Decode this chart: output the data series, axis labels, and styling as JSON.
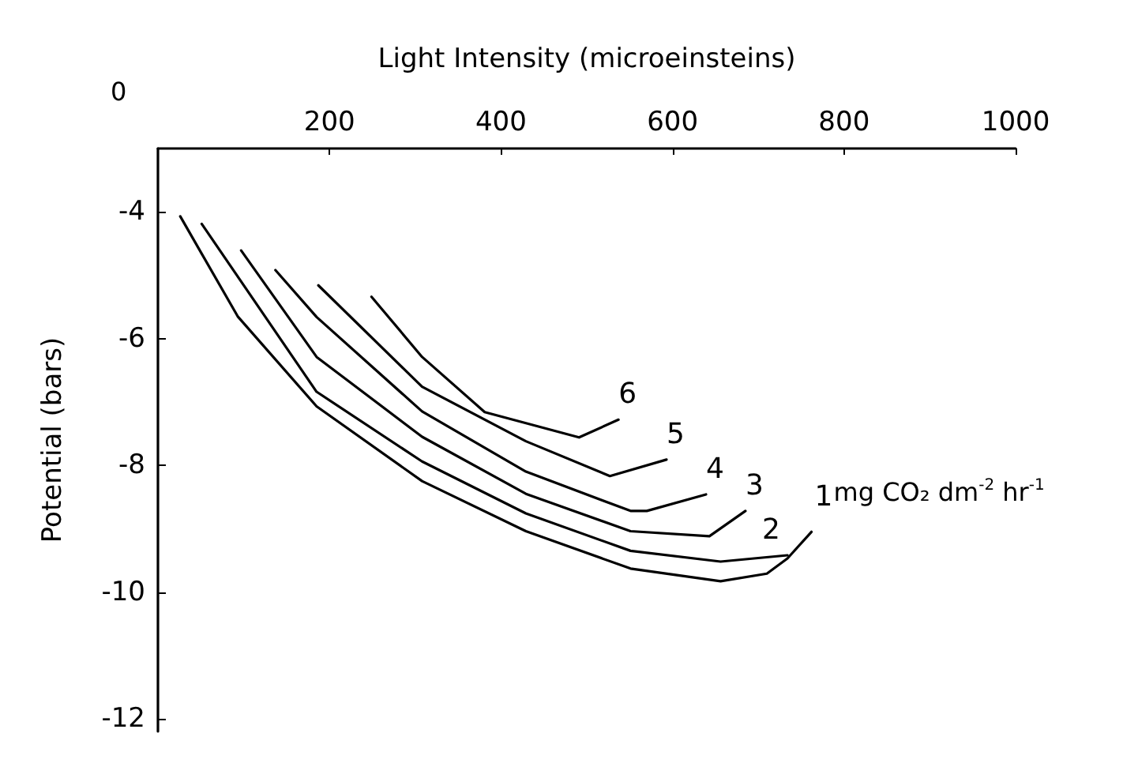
{
  "chart_data": {
    "type": "line",
    "xlabel": "Light Intensity (microeinsteins)",
    "ylabel": "Potential (bars)",
    "xlim": [
      0,
      1000
    ],
    "xticks": [
      200,
      400,
      600,
      800,
      1000
    ],
    "ylim": [
      -12.2,
      -3
    ],
    "yticks": [
      -4,
      -6,
      -8,
      -10,
      -12
    ],
    "grid": false,
    "legend": false,
    "marker": "none",
    "line_style": "solid",
    "annotations": [
      "0",
      "mg CO₂ dm$^{-2}$ hr$^{-1}$"
    ],
    "series": [
      {
        "name": "1",
        "color": "#000000",
        "x": [
          26,
          93,
          185,
          308,
          429,
          551,
          656,
          710,
          734,
          762
        ],
        "values": [
          -4.07,
          -5.65,
          -7.07,
          -8.25,
          -9.04,
          -9.63,
          -9.83,
          -9.71,
          -9.47,
          -9.05
        ]
      },
      {
        "name": "2",
        "color": "#000000",
        "x": [
          51,
          185,
          308,
          429,
          551,
          656,
          734
        ],
        "values": [
          -4.19,
          -6.84,
          -7.94,
          -8.76,
          -9.35,
          -9.52,
          -9.42
        ]
      },
      {
        "name": "3",
        "color": "#000000",
        "x": [
          97,
          185,
          308,
          429,
          551,
          643,
          685
        ],
        "values": [
          -4.61,
          -6.29,
          -7.55,
          -8.45,
          -9.04,
          -9.12,
          -8.72
        ]
      },
      {
        "name": "4",
        "color": "#000000",
        "x": [
          137,
          185,
          308,
          429,
          551,
          570,
          639
        ],
        "values": [
          -4.92,
          -5.66,
          -7.15,
          -8.1,
          -8.72,
          -8.72,
          -8.46
        ]
      },
      {
        "name": "5",
        "color": "#000000",
        "x": [
          187,
          308,
          429,
          527,
          593
        ],
        "values": [
          -5.16,
          -6.76,
          -7.62,
          -8.17,
          -7.91
        ]
      },
      {
        "name": "6",
        "color": "#000000",
        "x": [
          249,
          308,
          381,
          491,
          537
        ],
        "values": [
          -5.34,
          -6.29,
          -7.16,
          -7.56,
          -7.28
        ]
      }
    ]
  }
}
